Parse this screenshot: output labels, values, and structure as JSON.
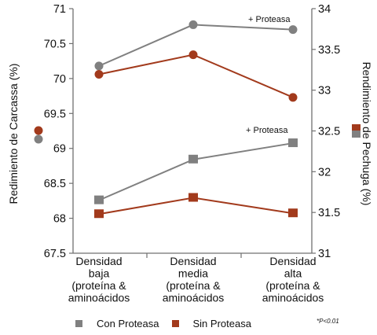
{
  "chart_data": {
    "type": "line",
    "categories": [
      [
        "Densidad",
        "baja",
        "(proteína &",
        "aminoácidos"
      ],
      [
        "Densidad",
        "media",
        "(proteína &",
        "aminoácidos"
      ],
      [
        "Densidad",
        "alta",
        "(proteína &",
        "aminoácidos"
      ]
    ],
    "left_axis": {
      "label": "Redimiento de Carcassa (%)",
      "ticks": [
        "71",
        "70.5",
        "70",
        "69.5",
        "69",
        "68.5",
        "68",
        "67.5"
      ],
      "ylim": [
        67.5,
        71
      ]
    },
    "right_axis": {
      "label": "Rendimiento de Pechuga (%)",
      "ticks": [
        "34",
        "33.5",
        "33",
        "32.5",
        "32",
        "31.5",
        "31"
      ],
      "ylim": [
        31,
        34
      ]
    },
    "series": [
      {
        "name": "Con Proteasa",
        "axis": "left",
        "marker": "circle",
        "values": [
          70.18,
          70.77,
          70.7
        ]
      },
      {
        "name": "Sin Proteasa",
        "axis": "left",
        "marker": "circle",
        "values": [
          70.06,
          70.34,
          69.73
        ]
      },
      {
        "name": "Con Proteasa",
        "axis": "right",
        "marker": "square",
        "values": [
          31.65,
          32.15,
          32.35
        ]
      },
      {
        "name": "Sin Proteasa",
        "axis": "right",
        "marker": "square",
        "values": [
          31.48,
          31.68,
          31.49
        ]
      }
    ],
    "annotations": [
      "+ Proteasa",
      "+ Proteasa"
    ],
    "colors": {
      "con": "#808080",
      "sin": "#a23a1c",
      "axis": "#707070"
    },
    "grid": false
  },
  "legend": [
    {
      "label": "Con Proteasa",
      "color": "#808080"
    },
    {
      "label": "Sin Proteasa",
      "color": "#a23a1c"
    }
  ],
  "footnote": "*P<0.01"
}
